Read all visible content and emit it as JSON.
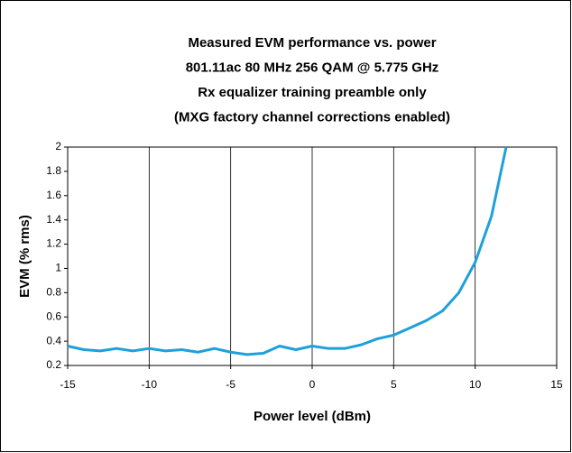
{
  "chart_data": {
    "type": "line",
    "title": [
      "Measured EVM performance vs. power",
      "801.11ac 80 MHz 256 QAM @ 5.775 GHz",
      "Rx equalizer training preamble only",
      "(MXG factory channel corrections enabled)"
    ],
    "x_label": "Power level (dBm)",
    "y_label": "EVM (% rms)",
    "x": [
      -15,
      -14,
      -13,
      -12,
      -11,
      -10,
      -9,
      -8,
      -7,
      -6,
      -5,
      -4,
      -3,
      -2,
      -1,
      0,
      1,
      2,
      3,
      4,
      5,
      6,
      7,
      8,
      9,
      10,
      11,
      11.9
    ],
    "series": [
      {
        "name": "EVM",
        "color": "#1ea0dc",
        "values": [
          0.36,
          0.33,
          0.32,
          0.34,
          0.32,
          0.34,
          0.32,
          0.33,
          0.31,
          0.34,
          0.31,
          0.29,
          0.3,
          0.36,
          0.33,
          0.36,
          0.34,
          0.34,
          0.37,
          0.42,
          0.45,
          0.51,
          0.57,
          0.65,
          0.8,
          1.05,
          1.43,
          2.0
        ]
      }
    ],
    "xlim": [
      -15,
      15
    ],
    "xticks": [
      -15,
      -10,
      -5,
      0,
      5,
      10,
      15
    ],
    "ylim": [
      0.2,
      2
    ],
    "yticks": [
      0.2,
      0.4,
      0.6,
      0.8,
      1,
      1.2,
      1.4,
      1.6,
      1.8,
      2
    ],
    "xgrid": true
  }
}
